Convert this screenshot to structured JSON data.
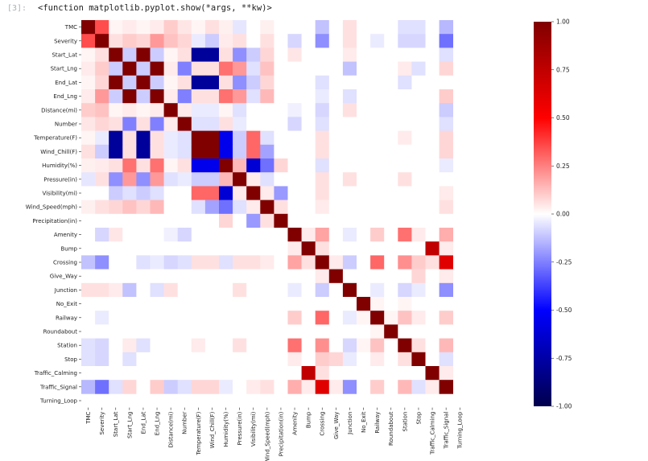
{
  "cell": {
    "prompt": "[3]:",
    "output": "<function matplotlib.pyplot.show(*args, **kw)>"
  },
  "chart_data": {
    "type": "heatmap",
    "title": "",
    "xlabel": "",
    "ylabel": "",
    "labels": [
      "TMC",
      "Severity",
      "Start_Lat",
      "Start_Lng",
      "End_Lat",
      "End_Lng",
      "Distance(mi)",
      "Number",
      "Temperature(F)",
      "Wind_Chill(F)",
      "Humidity(%)",
      "Pressure(in)",
      "Visibility(mi)",
      "Wind_Speed(mph)",
      "Precipitation(in)",
      "Amenity",
      "Bump",
      "Crossing",
      "Give_Way",
      "Junction",
      "No_Exit",
      "Railway",
      "Roundabout",
      "Station",
      "Stop",
      "Traffic_Calming",
      "Traffic_Signal",
      "Turning_Loop"
    ],
    "colormap": "seismic",
    "vmin": -1.0,
    "vmax": 1.0,
    "colorbar_ticks": [
      "1.00",
      "0.75",
      "0.50",
      "0.25",
      "0.00",
      "-0.25",
      "-0.50",
      "-0.75",
      "-1.00"
    ],
    "colorbar_values": [
      1.0,
      0.75,
      0.5,
      0.25,
      0.0,
      -0.25,
      -0.5,
      -0.75,
      -1.0
    ],
    "nan_label": "Turning_Loop",
    "pairs": [
      [
        "TMC",
        "Severity",
        0.35
      ],
      [
        "TMC",
        "Start_Lat",
        0.02
      ],
      [
        "TMC",
        "Start_Lng",
        0.04
      ],
      [
        "TMC",
        "End_Lat",
        0.02
      ],
      [
        "TMC",
        "End_Lng",
        0.04
      ],
      [
        "TMC",
        "Distance(mi)",
        0.1
      ],
      [
        "TMC",
        "Number",
        0.05
      ],
      [
        "TMC",
        "Temperature(F)",
        0.02
      ],
      [
        "TMC",
        "Wind_Chill(F)",
        0.06
      ],
      [
        "TMC",
        "Humidity(%)",
        0.03
      ],
      [
        "TMC",
        "Pressure(in)",
        -0.05
      ],
      [
        "TMC",
        "Wind_Speed(mph)",
        0.03
      ],
      [
        "TMC",
        "Crossing",
        -0.12
      ],
      [
        "TMC",
        "Junction",
        0.06
      ],
      [
        "TMC",
        "Station",
        -0.06
      ],
      [
        "TMC",
        "Stop",
        -0.06
      ],
      [
        "TMC",
        "Traffic_Signal",
        -0.14
      ],
      [
        "Severity",
        "Start_Lat",
        0.06
      ],
      [
        "Severity",
        "Start_Lng",
        0.1
      ],
      [
        "Severity",
        "End_Lat",
        0.08
      ],
      [
        "Severity",
        "End_Lng",
        0.2
      ],
      [
        "Severity",
        "Distance(mi)",
        0.12
      ],
      [
        "Severity",
        "Number",
        0.08
      ],
      [
        "Severity",
        "Temperature(F)",
        -0.04
      ],
      [
        "Severity",
        "Wind_Chill(F)",
        -0.1
      ],
      [
        "Severity",
        "Humidity(%)",
        0.04
      ],
      [
        "Severity",
        "Pressure(in)",
        0.06
      ],
      [
        "Severity",
        "Wind_Speed(mph)",
        0.06
      ],
      [
        "Severity",
        "Amenity",
        -0.08
      ],
      [
        "Severity",
        "Crossing",
        -0.22
      ],
      [
        "Severity",
        "Junction",
        0.06
      ],
      [
        "Severity",
        "Station",
        -0.08
      ],
      [
        "Severity",
        "Stop",
        -0.08
      ],
      [
        "Severity",
        "Traffic_Signal",
        -0.28
      ],
      [
        "Severity",
        "Railway",
        -0.04
      ],
      [
        "Start_Lat",
        "Start_Lng",
        -0.1
      ],
      [
        "Start_Lat",
        "End_Lat",
        1.0
      ],
      [
        "Start_Lat",
        "End_Lng",
        -0.1
      ],
      [
        "Start_Lat",
        "Distance(mi)",
        0.02
      ],
      [
        "Start_Lat",
        "Number",
        0.06
      ],
      [
        "Start_Lat",
        "Temperature(F)",
        -0.78
      ],
      [
        "Start_Lat",
        "Wind_Chill(F)",
        -0.78
      ],
      [
        "Start_Lat",
        "Humidity(%)",
        0.06
      ],
      [
        "Start_Lat",
        "Pressure(in)",
        -0.22
      ],
      [
        "Start_Lat",
        "Visibility(mi)",
        -0.1
      ],
      [
        "Start_Lat",
        "Wind_Speed(mph)",
        0.08
      ],
      [
        "Start_Lat",
        "Amenity",
        0.05
      ],
      [
        "Start_Lat",
        "Junction",
        0.04
      ],
      [
        "Start_Lat",
        "Traffic_Signal",
        -0.06
      ],
      [
        "Start_Lng",
        "End_Lat",
        -0.1
      ],
      [
        "Start_Lng",
        "End_Lng",
        1.0
      ],
      [
        "Start_Lng",
        "Distance(mi)",
        0.04
      ],
      [
        "Start_Lng",
        "Number",
        -0.25
      ],
      [
        "Start_Lng",
        "Temperature(F)",
        0.06
      ],
      [
        "Start_Lng",
        "Wind_Chill(F)",
        0.06
      ],
      [
        "Start_Lng",
        "Humidity(%)",
        0.28
      ],
      [
        "Start_Lng",
        "Pressure(in)",
        0.2
      ],
      [
        "Start_Lng",
        "Visibility(mi)",
        -0.06
      ],
      [
        "Start_Lng",
        "Wind_Speed(mph)",
        0.12
      ],
      [
        "Start_Lng",
        "Junction",
        -0.12
      ],
      [
        "Start_Lng",
        "Station",
        0.04
      ],
      [
        "Start_Lng",
        "Traffic_Signal",
        0.08
      ],
      [
        "Start_Lng",
        "Stop",
        -0.06
      ],
      [
        "End_Lat",
        "End_Lng",
        -0.1
      ],
      [
        "End_Lat",
        "Distance(mi)",
        0.02
      ],
      [
        "End_Lat",
        "Number",
        0.06
      ],
      [
        "End_Lat",
        "Temperature(F)",
        -0.78
      ],
      [
        "End_Lat",
        "Wind_Chill(F)",
        -0.78
      ],
      [
        "End_Lat",
        "Humidity(%)",
        0.06
      ],
      [
        "End_Lat",
        "Pressure(in)",
        -0.22
      ],
      [
        "End_Lat",
        "Visibility(mi)",
        -0.1
      ],
      [
        "End_Lat",
        "Wind_Speed(mph)",
        0.08
      ],
      [
        "End_Lat",
        "Crossing",
        -0.06
      ],
      [
        "End_Lat",
        "Station",
        -0.06
      ],
      [
        "End_Lng",
        "Distance(mi)",
        0.04
      ],
      [
        "End_Lng",
        "Number",
        -0.25
      ],
      [
        "End_Lng",
        "Temperature(F)",
        0.06
      ],
      [
        "End_Lng",
        "Wind_Chill(F)",
        0.06
      ],
      [
        "End_Lng",
        "Humidity(%)",
        0.28
      ],
      [
        "End_Lng",
        "Pressure(in)",
        0.2
      ],
      [
        "End_Lng",
        "Visibility(mi)",
        -0.06
      ],
      [
        "End_Lng",
        "Wind_Speed(mph)",
        0.14
      ],
      [
        "End_Lng",
        "Traffic_Signal",
        0.1
      ],
      [
        "End_Lng",
        "Crossing",
        -0.04
      ],
      [
        "End_Lng",
        "Junction",
        -0.06
      ],
      [
        "Distance(mi)",
        "Number",
        0.04
      ],
      [
        "Distance(mi)",
        "Temperature(F)",
        -0.04
      ],
      [
        "Distance(mi)",
        "Wind_Chill(F)",
        -0.04
      ],
      [
        "Distance(mi)",
        "Humidity(%)",
        0.02
      ],
      [
        "Distance(mi)",
        "Pressure(in)",
        -0.06
      ],
      [
        "Distance(mi)",
        "Crossing",
        -0.08
      ],
      [
        "Distance(mi)",
        "Junction",
        0.06
      ],
      [
        "Distance(mi)",
        "Traffic_Signal",
        -0.1
      ],
      [
        "Distance(mi)",
        "Amenity",
        -0.03
      ],
      [
        "Number",
        "Temperature(F)",
        -0.06
      ],
      [
        "Number",
        "Wind_Chill(F)",
        -0.06
      ],
      [
        "Number",
        "Humidity(%)",
        0.06
      ],
      [
        "Number",
        "Pressure(in)",
        -0.04
      ],
      [
        "Number",
        "Crossing",
        -0.06
      ],
      [
        "Number",
        "Amenity",
        -0.08
      ],
      [
        "Number",
        "Traffic_Signal",
        -0.06
      ],
      [
        "Temperature(F)",
        "Wind_Chill(F)",
        1.0
      ],
      [
        "Temperature(F)",
        "Humidity(%)",
        -0.55
      ],
      [
        "Temperature(F)",
        "Pressure(in)",
        -0.1
      ],
      [
        "Temperature(F)",
        "Visibility(mi)",
        0.3
      ],
      [
        "Temperature(F)",
        "Wind_Speed(mph)",
        -0.06
      ],
      [
        "Temperature(F)",
        "Crossing",
        0.06
      ],
      [
        "Temperature(F)",
        "Traffic_Signal",
        0.08
      ],
      [
        "Temperature(F)",
        "Station",
        0.04
      ],
      [
        "Wind_Chill(F)",
        "Humidity(%)",
        -0.55
      ],
      [
        "Wind_Chill(F)",
        "Pressure(in)",
        -0.1
      ],
      [
        "Wind_Chill(F)",
        "Visibility(mi)",
        0.3
      ],
      [
        "Wind_Chill(F)",
        "Wind_Speed(mph)",
        -0.18
      ],
      [
        "Wind_Chill(F)",
        "Crossing",
        0.06
      ],
      [
        "Wind_Chill(F)",
        "Traffic_Signal",
        0.08
      ],
      [
        "Humidity(%)",
        "Pressure(in)",
        0.14
      ],
      [
        "Humidity(%)",
        "Visibility(mi)",
        -0.62
      ],
      [
        "Humidity(%)",
        "Wind_Speed(mph)",
        -0.28
      ],
      [
        "Humidity(%)",
        "Precipitation(in)",
        0.08
      ],
      [
        "Humidity(%)",
        "Crossing",
        -0.06
      ],
      [
        "Humidity(%)",
        "Traffic_Signal",
        -0.04
      ],
      [
        "Pressure(in)",
        "Visibility(mi)",
        0.04
      ],
      [
        "Pressure(in)",
        "Wind_Speed(mph)",
        -0.06
      ],
      [
        "Pressure(in)",
        "Crossing",
        0.06
      ],
      [
        "Pressure(in)",
        "Junction",
        0.06
      ],
      [
        "Pressure(in)",
        "Station",
        0.06
      ],
      [
        "Visibility(mi)",
        "Wind_Speed(mph)",
        0.04
      ],
      [
        "Visibility(mi)",
        "Precipitation(in)",
        -0.2
      ],
      [
        "Visibility(mi)",
        "Crossing",
        0.06
      ],
      [
        "Visibility(mi)",
        "Traffic_Signal",
        0.04
      ],
      [
        "Wind_Speed(mph)",
        "Precipitation(in)",
        0.06
      ],
      [
        "Wind_Speed(mph)",
        "Crossing",
        0.04
      ],
      [
        "Wind_Speed(mph)",
        "Traffic_Signal",
        0.06
      ],
      [
        "Amenity",
        "Bump",
        0.04
      ],
      [
        "Amenity",
        "Crossing",
        0.18
      ],
      [
        "Amenity",
        "Junction",
        -0.04
      ],
      [
        "Amenity",
        "Railway",
        0.1
      ],
      [
        "Amenity",
        "Station",
        0.28
      ],
      [
        "Amenity",
        "Stop",
        0.04
      ],
      [
        "Amenity",
        "Traffic_Signal",
        0.16
      ],
      [
        "Bump",
        "Crossing",
        0.06
      ],
      [
        "Bump",
        "Traffic_Calming",
        0.75
      ],
      [
        "Bump",
        "Traffic_Signal",
        0.04
      ],
      [
        "Crossing",
        "Give_Way",
        0.04
      ],
      [
        "Crossing",
        "Junction",
        -0.1
      ],
      [
        "Crossing",
        "Railway",
        0.3
      ],
      [
        "Crossing",
        "Station",
        0.22
      ],
      [
        "Crossing",
        "Stop",
        0.1
      ],
      [
        "Crossing",
        "Traffic_Calming",
        0.06
      ],
      [
        "Crossing",
        "Traffic_Signal",
        0.62
      ],
      [
        "Give_Way",
        "Stop",
        0.08
      ],
      [
        "Give_Way",
        "Traffic_Signal",
        0.04
      ],
      [
        "Junction",
        "Railway",
        -0.04
      ],
      [
        "Junction",
        "Station",
        -0.08
      ],
      [
        "Junction",
        "Stop",
        -0.04
      ],
      [
        "Junction",
        "Traffic_Signal",
        -0.22
      ],
      [
        "No_Exit",
        "Railway",
        0.02
      ],
      [
        "No_Exit",
        "Station",
        0.02
      ],
      [
        "Railway",
        "Station",
        0.12
      ],
      [
        "Railway",
        "Traffic_Signal",
        0.1
      ],
      [
        "Railway",
        "Stop",
        0.04
      ],
      [
        "Station",
        "Stop",
        0.06
      ],
      [
        "Station",
        "Traffic_Signal",
        0.14
      ],
      [
        "Stop",
        "Traffic_Signal",
        -0.06
      ],
      [
        "Traffic_Calming",
        "Traffic_Signal",
        0.04
      ],
      [
        "Roundabout",
        "Railway",
        0.02
      ]
    ]
  }
}
